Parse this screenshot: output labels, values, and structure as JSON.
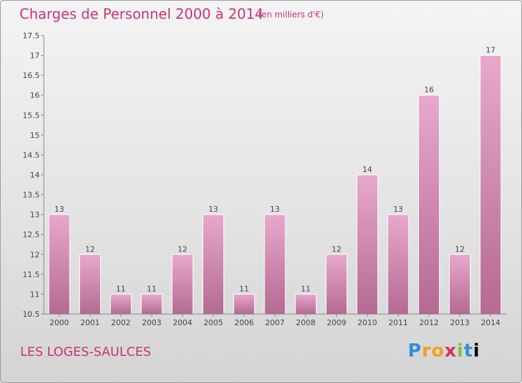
{
  "header": {
    "title": "Charges de Personnel 2000 à 2014",
    "subtitle": "(en milliers d'€)"
  },
  "footer": {
    "commune": "LES LOGES-SAULCES",
    "logo_text": "Proxiti"
  },
  "colors": {
    "accent": "#c8337a",
    "bar_top": "#e8a8cc",
    "bar_bottom": "#b46a92"
  },
  "chart_data": {
    "type": "bar",
    "title": "Charges de Personnel 2000 à 2014",
    "subtitle": "(en milliers d'€)",
    "xlabel": "",
    "ylabel": "",
    "categories": [
      "2000",
      "2001",
      "2002",
      "2003",
      "2004",
      "2005",
      "2006",
      "2007",
      "2008",
      "2009",
      "2010",
      "2011",
      "2012",
      "2013",
      "2014"
    ],
    "values": [
      13,
      12,
      11,
      11,
      12,
      13,
      11,
      13,
      11,
      12,
      14,
      13,
      16,
      12,
      17
    ],
    "ylim": [
      10.5,
      17.5
    ],
    "yticks": [
      10.5,
      11,
      11.5,
      12,
      12.5,
      13,
      13.5,
      14,
      14.5,
      15,
      15.5,
      16,
      16.5,
      17,
      17.5
    ],
    "ytick_labels": [
      "10.5",
      "11",
      "11.5",
      "12",
      "12.5",
      "13",
      "13.5",
      "14",
      "14.5",
      "15",
      "15.5",
      "16",
      "16.5",
      "17",
      "17.5"
    ],
    "grid": false,
    "legend": "none"
  }
}
